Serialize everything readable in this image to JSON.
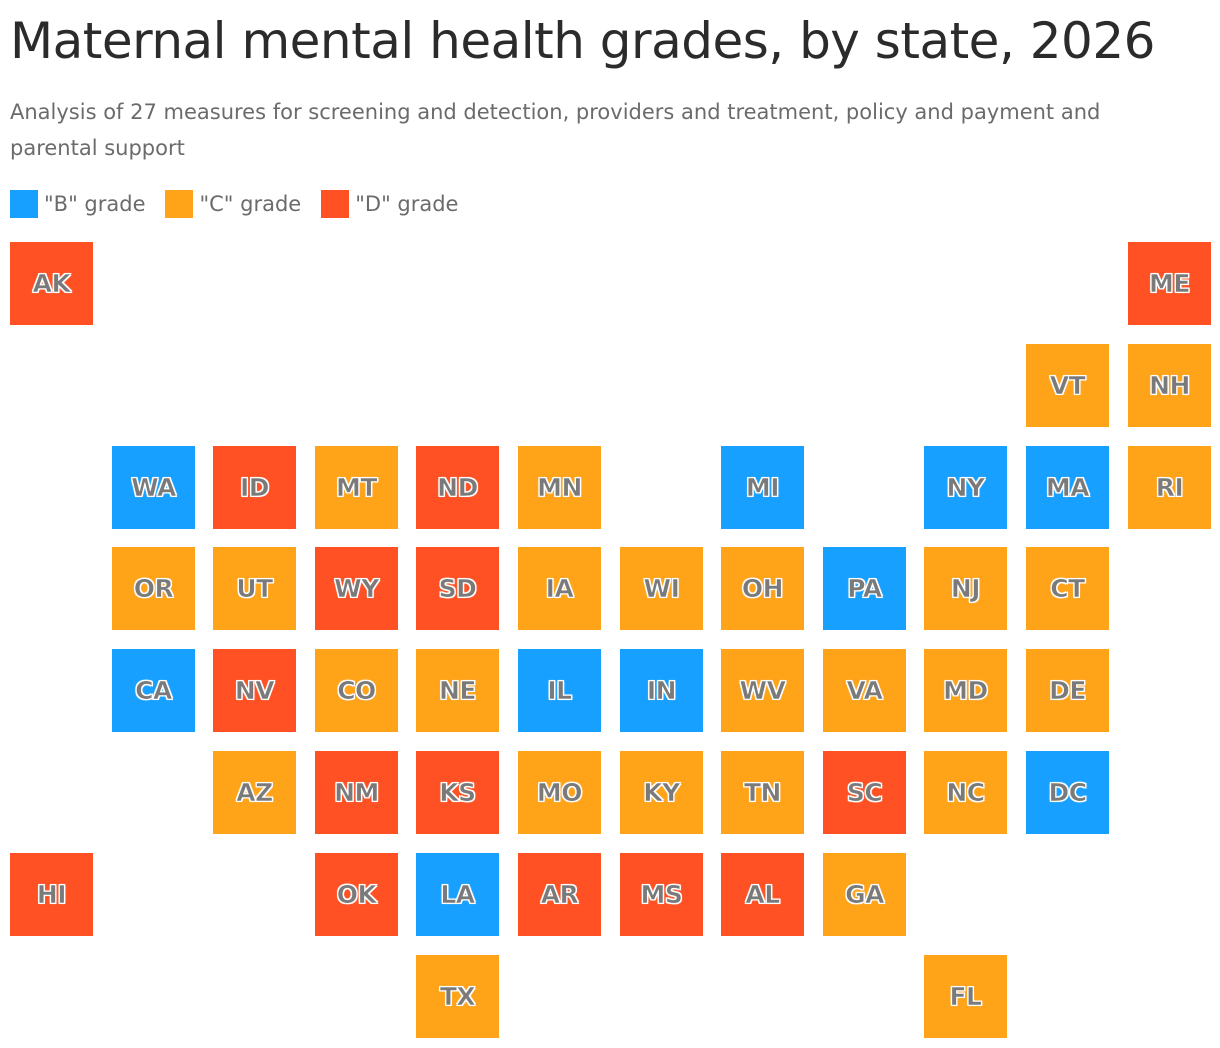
{
  "title": "Maternal mental health grades, by state, 2026",
  "subtitle": "Analysis of 27 measures for screening and detection, providers and treatment, policy and payment and parental support",
  "legend": [
    {
      "grade": "B",
      "label": "\"B\" grade",
      "color": "#17a0ff"
    },
    {
      "grade": "C",
      "label": "\"C\" grade",
      "color": "#ffa319"
    },
    {
      "grade": "D",
      "label": "\"D\" grade",
      "color": "#ff5123"
    }
  ],
  "states": [
    {
      "abbr": "AK",
      "grade": "D",
      "col": 0,
      "row": 0
    },
    {
      "abbr": "ME",
      "grade": "D",
      "col": 11,
      "row": 0
    },
    {
      "abbr": "VT",
      "grade": "C",
      "col": 10,
      "row": 1
    },
    {
      "abbr": "NH",
      "grade": "C",
      "col": 11,
      "row": 1
    },
    {
      "abbr": "WA",
      "grade": "B",
      "col": 1,
      "row": 2
    },
    {
      "abbr": "ID",
      "grade": "D",
      "col": 2,
      "row": 2
    },
    {
      "abbr": "MT",
      "grade": "C",
      "col": 3,
      "row": 2
    },
    {
      "abbr": "ND",
      "grade": "D",
      "col": 4,
      "row": 2
    },
    {
      "abbr": "MN",
      "grade": "C",
      "col": 5,
      "row": 2
    },
    {
      "abbr": "MI",
      "grade": "B",
      "col": 7,
      "row": 2
    },
    {
      "abbr": "NY",
      "grade": "B",
      "col": 9,
      "row": 2
    },
    {
      "abbr": "MA",
      "grade": "B",
      "col": 10,
      "row": 2
    },
    {
      "abbr": "RI",
      "grade": "C",
      "col": 11,
      "row": 2
    },
    {
      "abbr": "OR",
      "grade": "C",
      "col": 1,
      "row": 3
    },
    {
      "abbr": "UT",
      "grade": "C",
      "col": 2,
      "row": 3
    },
    {
      "abbr": "WY",
      "grade": "D",
      "col": 3,
      "row": 3
    },
    {
      "abbr": "SD",
      "grade": "D",
      "col": 4,
      "row": 3
    },
    {
      "abbr": "IA",
      "grade": "C",
      "col": 5,
      "row": 3
    },
    {
      "abbr": "WI",
      "grade": "C",
      "col": 6,
      "row": 3
    },
    {
      "abbr": "OH",
      "grade": "C",
      "col": 7,
      "row": 3
    },
    {
      "abbr": "PA",
      "grade": "B",
      "col": 8,
      "row": 3
    },
    {
      "abbr": "NJ",
      "grade": "C",
      "col": 9,
      "row": 3
    },
    {
      "abbr": "CT",
      "grade": "C",
      "col": 10,
      "row": 3
    },
    {
      "abbr": "CA",
      "grade": "B",
      "col": 1,
      "row": 4
    },
    {
      "abbr": "NV",
      "grade": "D",
      "col": 2,
      "row": 4
    },
    {
      "abbr": "CO",
      "grade": "C",
      "col": 3,
      "row": 4
    },
    {
      "abbr": "NE",
      "grade": "C",
      "col": 4,
      "row": 4
    },
    {
      "abbr": "IL",
      "grade": "B",
      "col": 5,
      "row": 4
    },
    {
      "abbr": "IN",
      "grade": "B",
      "col": 6,
      "row": 4
    },
    {
      "abbr": "WV",
      "grade": "C",
      "col": 7,
      "row": 4
    },
    {
      "abbr": "VA",
      "grade": "C",
      "col": 8,
      "row": 4
    },
    {
      "abbr": "MD",
      "grade": "C",
      "col": 9,
      "row": 4
    },
    {
      "abbr": "DE",
      "grade": "C",
      "col": 10,
      "row": 4
    },
    {
      "abbr": "AZ",
      "grade": "C",
      "col": 2,
      "row": 5
    },
    {
      "abbr": "NM",
      "grade": "D",
      "col": 3,
      "row": 5
    },
    {
      "abbr": "KS",
      "grade": "D",
      "col": 4,
      "row": 5
    },
    {
      "abbr": "MO",
      "grade": "C",
      "col": 5,
      "row": 5
    },
    {
      "abbr": "KY",
      "grade": "C",
      "col": 6,
      "row": 5
    },
    {
      "abbr": "TN",
      "grade": "C",
      "col": 7,
      "row": 5
    },
    {
      "abbr": "SC",
      "grade": "D",
      "col": 8,
      "row": 5
    },
    {
      "abbr": "NC",
      "grade": "C",
      "col": 9,
      "row": 5
    },
    {
      "abbr": "DC",
      "grade": "B",
      "col": 10,
      "row": 5
    },
    {
      "abbr": "HI",
      "grade": "D",
      "col": 0,
      "row": 6
    },
    {
      "abbr": "OK",
      "grade": "D",
      "col": 3,
      "row": 6
    },
    {
      "abbr": "LA",
      "grade": "B",
      "col": 4,
      "row": 6
    },
    {
      "abbr": "AR",
      "grade": "D",
      "col": 5,
      "row": 6
    },
    {
      "abbr": "MS",
      "grade": "D",
      "col": 6,
      "row": 6
    },
    {
      "abbr": "AL",
      "grade": "D",
      "col": 7,
      "row": 6
    },
    {
      "abbr": "GA",
      "grade": "C",
      "col": 8,
      "row": 6
    },
    {
      "abbr": "TX",
      "grade": "C",
      "col": 4,
      "row": 7
    },
    {
      "abbr": "FL",
      "grade": "C",
      "col": 9,
      "row": 7
    }
  ]
}
